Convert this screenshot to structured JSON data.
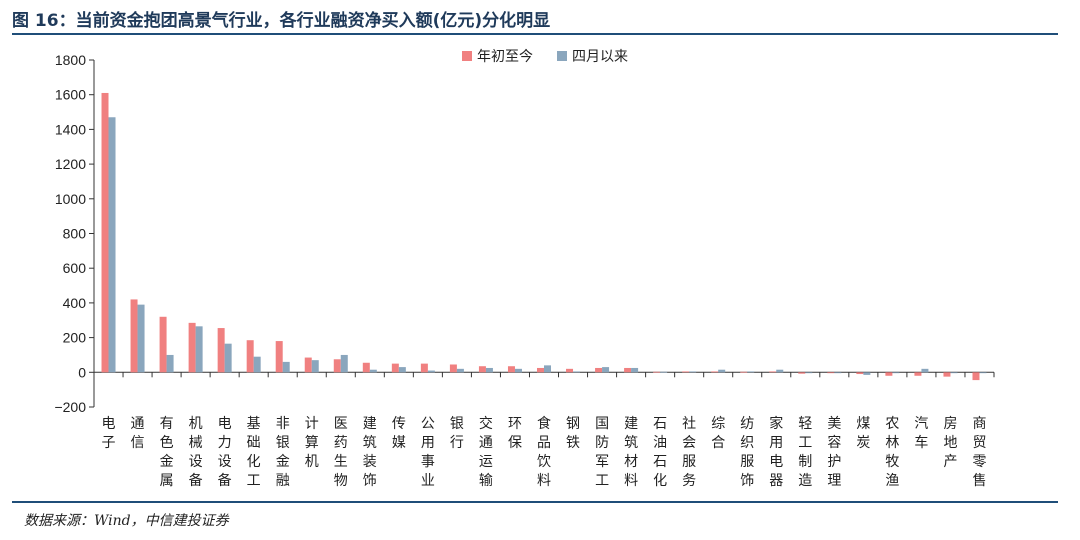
{
  "title": "图 16：当前资金抱团高景气行业，各行业融资净买入额(亿元)分化明显",
  "source": "数据来源：Wind，中信建投证券",
  "chart_data": {
    "type": "bar",
    "categories": [
      "电子",
      "通信",
      "有色金属",
      "机械设备",
      "电力设备",
      "基础化工",
      "非银金融",
      "计算机",
      "医药生物",
      "建筑装饰",
      "传媒",
      "公用事业",
      "银行",
      "交通运输",
      "环保",
      "食品饮料",
      "钢铁",
      "国防军工",
      "建筑材料",
      "石油石化",
      "社会服务",
      "综合",
      "纺织服饰",
      "家用电器",
      "轻工制造",
      "美容护理",
      "煤炭",
      "农林牧渔",
      "汽车",
      "房地产",
      "商贸零售"
    ],
    "series": [
      {
        "name": "年初至今",
        "color": "#f08080",
        "values": [
          1610,
          420,
          320,
          285,
          255,
          185,
          180,
          85,
          75,
          55,
          50,
          50,
          45,
          35,
          35,
          25,
          20,
          25,
          25,
          3,
          5,
          5,
          3,
          5,
          -8,
          -5,
          -10,
          -20,
          -20,
          -25,
          -45
        ]
      },
      {
        "name": "四月以来",
        "color": "#8aa6bd",
        "values": [
          1470,
          390,
          100,
          265,
          165,
          90,
          60,
          70,
          100,
          15,
          30,
          10,
          20,
          25,
          20,
          40,
          5,
          30,
          25,
          3,
          5,
          15,
          5,
          15,
          -5,
          -5,
          -15,
          -5,
          20,
          -5,
          -5
        ]
      }
    ],
    "ylim": [
      -200,
      1800
    ],
    "yticks": [
      "1800",
      "1600",
      "1400",
      "1200",
      "1000",
      "800",
      "600",
      "400",
      "200",
      "0",
      "−200"
    ],
    "legend_position": "top-center",
    "grid": false
  }
}
